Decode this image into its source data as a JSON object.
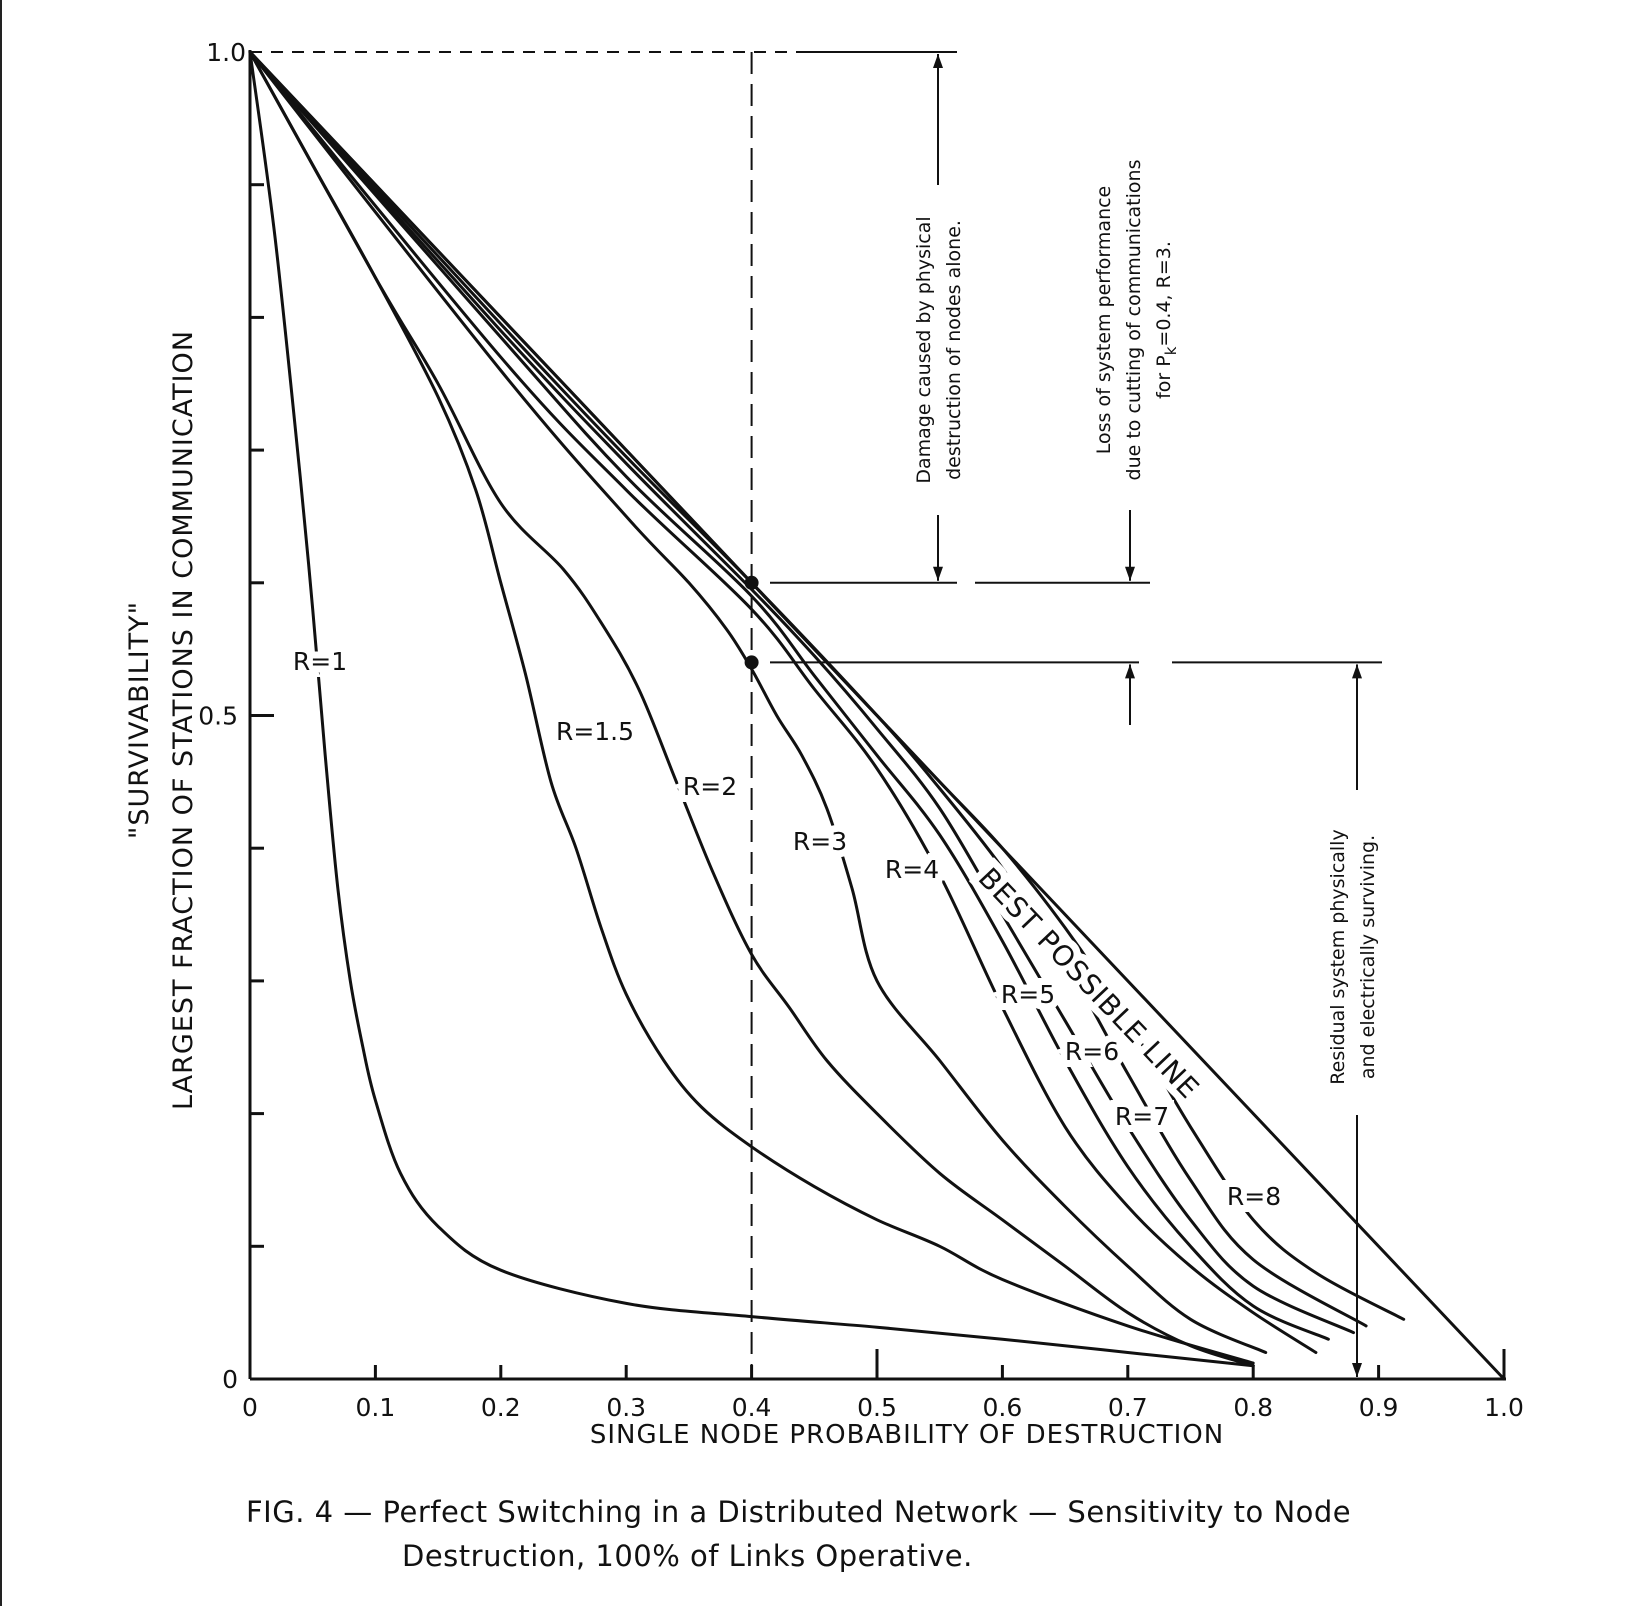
{
  "chart_data": {
    "type": "line",
    "title": "",
    "caption": {
      "line1": "FIG. 4 — Perfect Switching in a Distributed Network — Sensitivity to Node",
      "line2": "Destruction, 100% of Links Operative."
    },
    "xlabel": "SINGLE NODE PROBABILITY OF DESTRUCTION",
    "ylabel_line1": "\"SURVIVABILITY\"",
    "ylabel_line2": "LARGEST FRACTION OF STATIONS IN COMMUNICATION",
    "xlim": [
      0,
      1.0
    ],
    "ylim": [
      0,
      1.0
    ],
    "x_tick_labels": [
      "0",
      "0.1",
      "0.2",
      "0.3",
      "0.4",
      "0.5",
      "0.6",
      "0.7",
      "0.8",
      "0.9",
      "1.0"
    ],
    "y_tick_labels": [
      "0",
      "0.5",
      "1.0"
    ],
    "series": [
      {
        "name": "R=1",
        "x": [
          0,
          0.02,
          0.04,
          0.05,
          0.06,
          0.07,
          0.08,
          0.09,
          0.1,
          0.12,
          0.15,
          0.2,
          0.3,
          0.4,
          0.5,
          0.6,
          0.7,
          0.8
        ],
        "y": [
          1.0,
          0.86,
          0.68,
          0.58,
          0.47,
          0.37,
          0.3,
          0.25,
          0.21,
          0.155,
          0.115,
          0.082,
          0.057,
          0.047,
          0.039,
          0.03,
          0.02,
          0.01
        ]
      },
      {
        "name": "R=1.5",
        "x": [
          0,
          0.05,
          0.1,
          0.15,
          0.18,
          0.2,
          0.22,
          0.24,
          0.26,
          0.28,
          0.3,
          0.33,
          0.36,
          0.4,
          0.45,
          0.5,
          0.55,
          0.6,
          0.7,
          0.8
        ],
        "y": [
          1.0,
          0.915,
          0.83,
          0.74,
          0.67,
          0.6,
          0.53,
          0.45,
          0.4,
          0.34,
          0.29,
          0.24,
          0.205,
          0.175,
          0.145,
          0.12,
          0.1,
          0.075,
          0.04,
          0.012
        ]
      },
      {
        "name": "R=2",
        "x": [
          0,
          0.1,
          0.15,
          0.2,
          0.25,
          0.28,
          0.31,
          0.34,
          0.37,
          0.4,
          0.43,
          0.46,
          0.5,
          0.55,
          0.6,
          0.65,
          0.7,
          0.75,
          0.8
        ],
        "y": [
          1.0,
          0.83,
          0.75,
          0.66,
          0.61,
          0.57,
          0.52,
          0.45,
          0.38,
          0.32,
          0.28,
          0.24,
          0.2,
          0.155,
          0.12,
          0.085,
          0.05,
          0.025,
          0.01
        ]
      },
      {
        "name": "R=3",
        "x": [
          0,
          0.2,
          0.3,
          0.35,
          0.38,
          0.4,
          0.42,
          0.44,
          0.46,
          0.48,
          0.5,
          0.55,
          0.6,
          0.65,
          0.7,
          0.75,
          0.81
        ],
        "y": [
          1.0,
          0.76,
          0.65,
          0.6,
          0.565,
          0.535,
          0.5,
          0.47,
          0.43,
          0.37,
          0.3,
          0.24,
          0.18,
          0.13,
          0.085,
          0.045,
          0.02
        ]
      },
      {
        "name": "R=4",
        "x": [
          0,
          0.2,
          0.3,
          0.4,
          0.45,
          0.5,
          0.55,
          0.6,
          0.65,
          0.7,
          0.75,
          0.8,
          0.85
        ],
        "y": [
          1.0,
          0.77,
          0.67,
          0.58,
          0.52,
          0.46,
          0.38,
          0.28,
          0.19,
          0.13,
          0.085,
          0.05,
          0.02
        ]
      },
      {
        "name": "R=5",
        "x": [
          0,
          0.2,
          0.3,
          0.4,
          0.45,
          0.5,
          0.55,
          0.6,
          0.65,
          0.7,
          0.75,
          0.8,
          0.86
        ],
        "y": [
          1.0,
          0.785,
          0.68,
          0.59,
          0.53,
          0.47,
          0.41,
          0.33,
          0.24,
          0.16,
          0.1,
          0.055,
          0.03
        ]
      },
      {
        "name": "R=6",
        "x": [
          0,
          0.2,
          0.3,
          0.4,
          0.45,
          0.5,
          0.55,
          0.6,
          0.65,
          0.7,
          0.75,
          0.8,
          0.88
        ],
        "y": [
          1.0,
          0.79,
          0.69,
          0.595,
          0.545,
          0.49,
          0.43,
          0.35,
          0.27,
          0.19,
          0.12,
          0.07,
          0.035
        ]
      },
      {
        "name": "R=7",
        "x": [
          0,
          0.2,
          0.3,
          0.4,
          0.5,
          0.55,
          0.6,
          0.65,
          0.7,
          0.75,
          0.8,
          0.89
        ],
        "y": [
          1.0,
          0.795,
          0.695,
          0.6,
          0.5,
          0.445,
          0.385,
          0.315,
          0.23,
          0.15,
          0.09,
          0.04
        ]
      },
      {
        "name": "R=8",
        "x": [
          0,
          0.2,
          0.3,
          0.4,
          0.5,
          0.55,
          0.6,
          0.65,
          0.7,
          0.75,
          0.8,
          0.85,
          0.92
        ],
        "y": [
          1.0,
          0.8,
          0.7,
          0.6,
          0.5,
          0.45,
          0.4,
          0.34,
          0.27,
          0.19,
          0.12,
          0.08,
          0.045
        ]
      },
      {
        "name": "BEST POSSIBLE LINE",
        "x": [
          0,
          1.0
        ],
        "y": [
          1.0,
          0.0
        ]
      }
    ],
    "markers": [
      {
        "x": 0.4,
        "y": 0.6
      },
      {
        "x": 0.4,
        "y": 0.54
      }
    ],
    "reference_line_x": 0.4,
    "annotations": {
      "damage_line1": "Damage caused by physical",
      "damage_line2": "destruction of nodes alone.",
      "loss_line1": "Loss of system performance",
      "loss_line2": "due to cutting of communications",
      "loss_line3_pre": "for P",
      "loss_line3_sub": "k",
      "loss_line3_post": "=0.4, R=3.",
      "residual_line1": "Residual system physically",
      "residual_line2": "and electrically surviving."
    },
    "grid": false
  }
}
